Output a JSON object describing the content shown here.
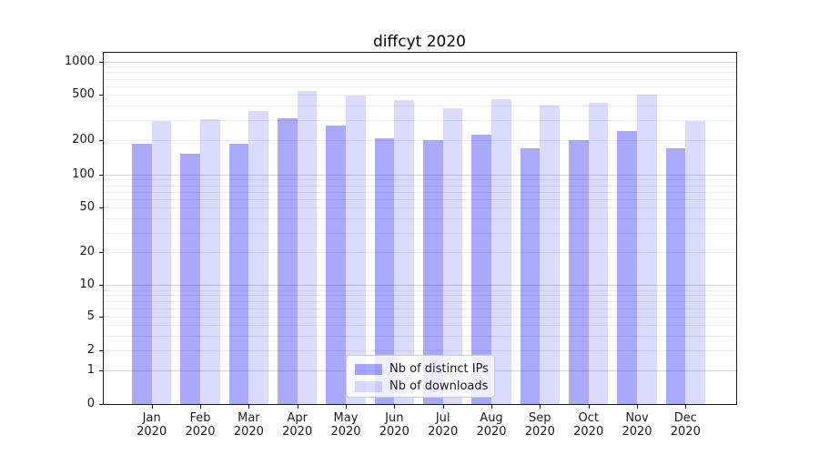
{
  "chart_data": {
    "type": "bar",
    "title": "diffcyt 2020",
    "categories": [
      "Jan 2020",
      "Feb 2020",
      "Mar 2020",
      "Apr 2020",
      "May 2020",
      "Jun 2020",
      "Jul 2020",
      "Aug 2020",
      "Sep 2020",
      "Oct 2020",
      "Nov 2020",
      "Dec 2020"
    ],
    "series": [
      {
        "name": "Nb of distinct IPs",
        "color": "rgba(0,0,255,0.34)",
        "values": [
          188,
          152,
          186,
          312,
          271,
          210,
          201,
          223,
          169,
          203,
          240,
          169
        ]
      },
      {
        "name": "Nb of downloads",
        "color": "rgba(0,0,255,0.14)",
        "values": [
          294,
          307,
          364,
          542,
          494,
          453,
          380,
          456,
          401,
          429,
          505,
          296
        ]
      }
    ],
    "xlabel": "",
    "ylabel": "",
    "yscale": "symlog",
    "yticks": [
      0,
      1,
      2,
      5,
      10,
      20,
      50,
      100,
      200,
      500,
      1000
    ],
    "ylim": [
      0,
      1300
    ],
    "grid": true,
    "legend_position": "lower center",
    "colors": {
      "grid_major": "#d6d6d6",
      "grid_minor": "#ededed",
      "axis": "#1a1a1a",
      "legend_border": "#cccccc",
      "legend_bg": "rgba(255,255,255,0.8)"
    }
  }
}
